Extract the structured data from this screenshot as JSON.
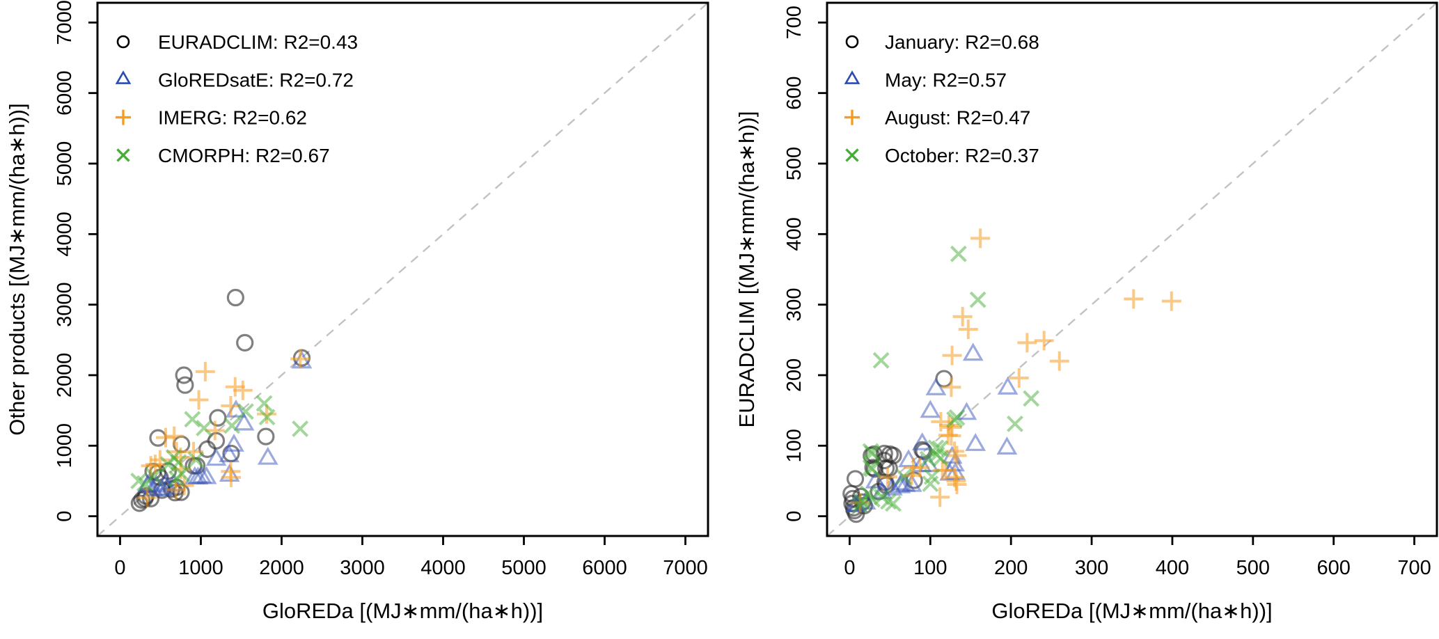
{
  "figure": {
    "background": "#ffffff",
    "description": "Two side-by-side scatter plots comparing rainfall erosivity products against GloREDa"
  },
  "chart_data": [
    {
      "type": "scatter",
      "position": "left",
      "title": "",
      "xlabel": "GloREDa [(MJ∗mm/(ha∗h))]",
      "ylabel": "Other products [(MJ∗mm/(ha∗h))]",
      "xlim": [
        -280,
        7280
      ],
      "ylim": [
        -280,
        7280
      ],
      "xticks": [
        0,
        1000,
        2000,
        3000,
        4000,
        5000,
        6000,
        7000
      ],
      "yticks": [
        0,
        1000,
        2000,
        3000,
        4000,
        5000,
        6000,
        7000
      ],
      "grid": false,
      "legend_position": "top-left",
      "identity_line": {
        "show": true,
        "style": "dashed",
        "color": "#c2c2c2"
      },
      "series": [
        {
          "name": "EURADCLIM",
          "legend_label": "EURADCLIM: R2=0.43",
          "r2": 0.43,
          "marker": "circle",
          "color": "#000000",
          "data_color": "#2b2b2b",
          "data_opacity": 0.6,
          "points": [
            [
              240,
              185
            ],
            [
              270,
              230
            ],
            [
              305,
              250
            ],
            [
              320,
              285
            ],
            [
              380,
              250
            ],
            [
              410,
              635
            ],
            [
              465,
              615
            ],
            [
              470,
              1110
            ],
            [
              495,
              550
            ],
            [
              520,
              370
            ],
            [
              595,
              640
            ],
            [
              640,
              385
            ],
            [
              680,
              335
            ],
            [
              700,
              410
            ],
            [
              755,
              340
            ],
            [
              760,
              1020
            ],
            [
              790,
              2000
            ],
            [
              805,
              1860
            ],
            [
              910,
              715
            ],
            [
              950,
              715
            ],
            [
              1080,
              950
            ],
            [
              1190,
              1070
            ],
            [
              1210,
              1395
            ],
            [
              1375,
              890
            ],
            [
              1430,
              3100
            ],
            [
              1545,
              2460
            ],
            [
              1805,
              1130
            ],
            [
              2250,
              2245
            ]
          ]
        },
        {
          "name": "GloREDsatE",
          "legend_label": "GloREDsatE: R2=0.72",
          "r2": 0.72,
          "marker": "triangle",
          "color": "#2b4bb0",
          "data_color": "#3a55bb",
          "data_opacity": 0.5,
          "points": [
            [
              335,
              415
            ],
            [
              350,
              435
            ],
            [
              405,
              370
            ],
            [
              450,
              420
            ],
            [
              520,
              365
            ],
            [
              565,
              450
            ],
            [
              580,
              380
            ],
            [
              665,
              435
            ],
            [
              925,
              540
            ],
            [
              965,
              535
            ],
            [
              1010,
              550
            ],
            [
              1070,
              540
            ],
            [
              1190,
              800
            ],
            [
              1350,
              850
            ],
            [
              1355,
              575
            ],
            [
              1410,
              1000
            ],
            [
              1435,
              1485
            ],
            [
              1535,
              1300
            ],
            [
              1830,
              815
            ],
            [
              2250,
              2180
            ]
          ]
        },
        {
          "name": "IMERG",
          "legend_label": "IMERG: R2=0.62",
          "r2": 0.62,
          "marker": "plus",
          "color": "#f59d20",
          "data_color": "#f59d20",
          "data_opacity": 0.55,
          "points": [
            [
              335,
              265
            ],
            [
              380,
              715
            ],
            [
              435,
              735
            ],
            [
              495,
              800
            ],
            [
              565,
              1115
            ],
            [
              670,
              1135
            ],
            [
              690,
              375
            ],
            [
              700,
              915
            ],
            [
              750,
              835
            ],
            [
              755,
              665
            ],
            [
              795,
              435
            ],
            [
              910,
              915
            ],
            [
              975,
              1650
            ],
            [
              1055,
              2050
            ],
            [
              1175,
              1215
            ],
            [
              1370,
              1565
            ],
            [
              1370,
              635
            ],
            [
              1375,
              550
            ],
            [
              1425,
              1835
            ],
            [
              1520,
              1785
            ],
            [
              1815,
              1450
            ],
            [
              2230,
              2230
            ]
          ]
        },
        {
          "name": "CMORPH",
          "legend_label": "CMORPH: R2=0.67",
          "r2": 0.67,
          "marker": "cross",
          "color": "#46ad35",
          "data_color": "#46ad35",
          "data_opacity": 0.5,
          "points": [
            [
              230,
              500
            ],
            [
              305,
              465
            ],
            [
              420,
              565
            ],
            [
              595,
              735
            ],
            [
              665,
              835
            ],
            [
              700,
              535
            ],
            [
              725,
              765
            ],
            [
              765,
              600
            ],
            [
              895,
              1375
            ],
            [
              940,
              800
            ],
            [
              1040,
              1250
            ],
            [
              1385,
              1285
            ],
            [
              1555,
              1485
            ],
            [
              1785,
              1600
            ],
            [
              1820,
              1405
            ],
            [
              2230,
              1240
            ]
          ]
        }
      ]
    },
    {
      "type": "scatter",
      "position": "right",
      "title": "",
      "xlabel": "GloREDa [(MJ∗mm/(ha∗h))]",
      "ylabel": "EURADCLIM [(MJ∗mm/(ha∗h))]",
      "xlim": [
        -28,
        728
      ],
      "ylim": [
        -28,
        728
      ],
      "xticks": [
        0,
        100,
        200,
        300,
        400,
        500,
        600,
        700
      ],
      "yticks": [
        0,
        100,
        200,
        300,
        400,
        500,
        600,
        700
      ],
      "grid": false,
      "legend_position": "top-left",
      "identity_line": {
        "show": true,
        "style": "dashed",
        "color": "#c2c2c2"
      },
      "series": [
        {
          "name": "January",
          "legend_label": "January: R2=0.68",
          "r2": 0.68,
          "marker": "circle",
          "color": "#000000",
          "data_color": "#2b2b2b",
          "data_opacity": 0.6,
          "points": [
            [
              2,
              32
            ],
            [
              3,
              18
            ],
            [
              4,
              25
            ],
            [
              5,
              12
            ],
            [
              6,
              8
            ],
            [
              8,
              3
            ],
            [
              14,
              28
            ],
            [
              16,
              20
            ],
            [
              18,
              15
            ],
            [
              7,
              53
            ],
            [
              27,
              86
            ],
            [
              30,
              88
            ],
            [
              43,
              89
            ],
            [
              50,
              88
            ],
            [
              54,
              86
            ],
            [
              43,
              79
            ],
            [
              29,
              69
            ],
            [
              31,
              67
            ],
            [
              45,
              68
            ],
            [
              49,
              68
            ],
            [
              44,
              48
            ],
            [
              45,
              44
            ],
            [
              36,
              35
            ],
            [
              80,
              51
            ],
            [
              90,
              94
            ],
            [
              92,
              92
            ],
            [
              117,
              195
            ]
          ]
        },
        {
          "name": "May",
          "legend_label": "May: R2=0.57",
          "r2": 0.57,
          "marker": "triangle",
          "color": "#2b4bb0",
          "data_color": "#3a55bb",
          "data_opacity": 0.5,
          "points": [
            [
              7,
              14
            ],
            [
              9,
              15
            ],
            [
              20,
              18
            ],
            [
              32,
              48
            ],
            [
              40,
              33
            ],
            [
              53,
              38
            ],
            [
              63,
              41
            ],
            [
              64,
              45
            ],
            [
              69,
              43
            ],
            [
              77,
              43
            ],
            [
              73,
              78
            ],
            [
              89,
              71
            ],
            [
              98,
              71
            ],
            [
              90,
              102
            ],
            [
              100,
              148
            ],
            [
              107,
              180
            ],
            [
              124,
              59
            ],
            [
              127,
              83
            ],
            [
              130,
              72
            ],
            [
              131,
              60
            ],
            [
              145,
              145
            ],
            [
              153,
              229
            ],
            [
              156,
              101
            ],
            [
              195,
              96
            ],
            [
              196,
              181
            ]
          ]
        },
        {
          "name": "August",
          "legend_label": "August: R2=0.47",
          "r2": 0.47,
          "marker": "plus",
          "color": "#f59d20",
          "data_color": "#f59d20",
          "data_opacity": 0.55,
          "points": [
            [
              13,
              19
            ],
            [
              47,
              56
            ],
            [
              77,
              58
            ],
            [
              79,
              69
            ],
            [
              87,
              69
            ],
            [
              112,
              27
            ],
            [
              113,
              134
            ],
            [
              115,
              65
            ],
            [
              119,
              65
            ],
            [
              122,
              115
            ],
            [
              126,
              114
            ],
            [
              123,
              129
            ],
            [
              127,
              126
            ],
            [
              130,
              92
            ],
            [
              133,
              86
            ],
            [
              130,
              55
            ],
            [
              132,
              50
            ],
            [
              133,
              45
            ],
            [
              127,
              228
            ],
            [
              140,
              283
            ],
            [
              147,
              265
            ],
            [
              126,
              183
            ],
            [
              162,
              394
            ],
            [
              210,
              196
            ],
            [
              220,
              246
            ],
            [
              241,
              249
            ],
            [
              260,
              220
            ],
            [
              352,
              308
            ],
            [
              399,
              305
            ]
          ]
        },
        {
          "name": "October",
          "legend_label": "October: R2=0.37",
          "r2": 0.37,
          "marker": "cross",
          "color": "#46ad35",
          "data_color": "#46ad35",
          "data_opacity": 0.5,
          "points": [
            [
              13,
              15
            ],
            [
              15,
              21
            ],
            [
              23,
              32
            ],
            [
              28,
              24
            ],
            [
              40,
              27
            ],
            [
              48,
              21
            ],
            [
              54,
              18
            ],
            [
              26,
              92
            ],
            [
              28,
              89
            ],
            [
              26,
              69
            ],
            [
              28,
              67
            ],
            [
              39,
              221
            ],
            [
              67,
              56
            ],
            [
              97,
              81
            ],
            [
              100,
              46
            ],
            [
              102,
              56
            ],
            [
              107,
              97
            ],
            [
              112,
              96
            ],
            [
              108,
              87
            ],
            [
              113,
              82
            ],
            [
              130,
              137
            ],
            [
              133,
              140
            ],
            [
              135,
              372
            ],
            [
              159,
              307
            ],
            [
              205,
              131
            ],
            [
              225,
              167
            ]
          ]
        }
      ]
    }
  ]
}
